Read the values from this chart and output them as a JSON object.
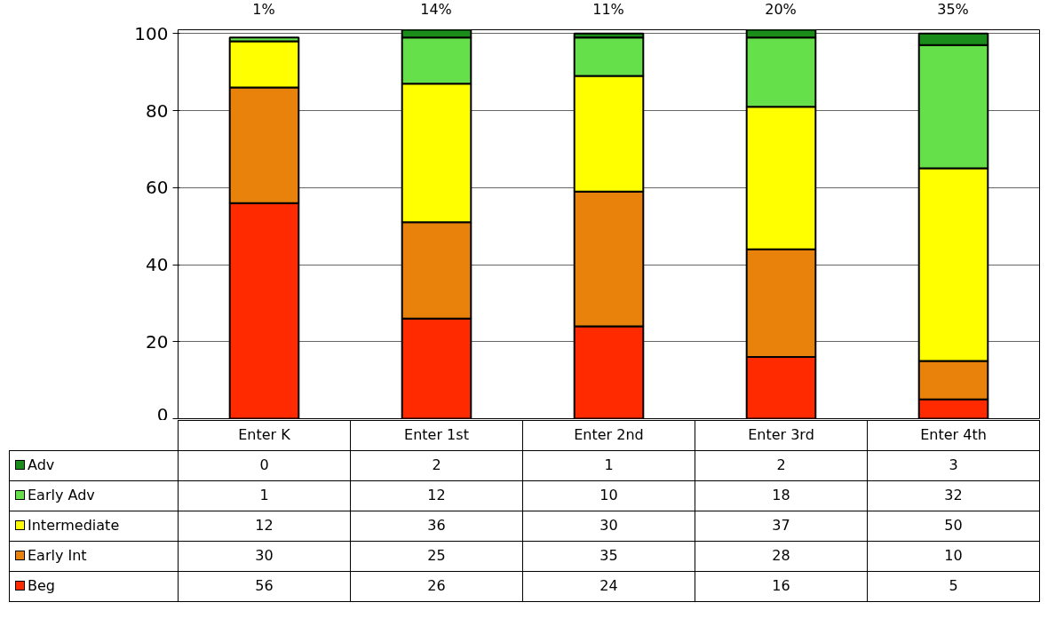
{
  "chart_data": {
    "type": "bar",
    "stacked": true,
    "categories": [
      "Enter K",
      "Enter 1st",
      "Enter 2nd",
      "Enter 3rd",
      "Enter 4th"
    ],
    "series": [
      {
        "name": "Beg",
        "color": "#ff2a00",
        "values": [
          56,
          26,
          24,
          16,
          5
        ]
      },
      {
        "name": "Early Int",
        "color": "#e8820a",
        "values": [
          30,
          25,
          35,
          28,
          10
        ]
      },
      {
        "name": "Intermediate",
        "color": "#ffff00",
        "values": [
          12,
          36,
          30,
          37,
          50
        ]
      },
      {
        "name": "Early Adv",
        "color": "#66e04a",
        "values": [
          1,
          12,
          10,
          18,
          32
        ]
      },
      {
        "name": "Adv",
        "color": "#1a8c1a",
        "values": [
          0,
          2,
          1,
          2,
          3
        ]
      }
    ],
    "ylim": [
      0,
      101
    ],
    "yticks": [
      0,
      20,
      40,
      60,
      80,
      100
    ],
    "grid": "y",
    "legend": "bottom",
    "data_labels": true,
    "annotations": [
      "1%",
      "14%",
      "11%",
      "20%",
      "35%"
    ]
  }
}
